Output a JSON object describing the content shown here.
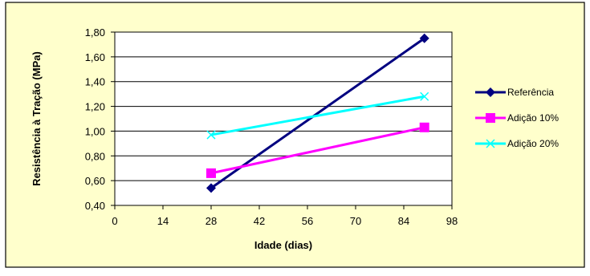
{
  "colors": {
    "chart_area_bg": "#FFFFCC",
    "plot_bg": "#FFFFFF",
    "border": "#000000",
    "grid": "#000000",
    "axis_text": "#000000"
  },
  "chart_data": {
    "type": "line",
    "xlabel": "Idade (dias)",
    "ylabel": "Resistência à Tração (MPa)",
    "xlim": [
      0,
      98
    ],
    "ylim": [
      0.4,
      1.8
    ],
    "xticks": [
      0,
      14,
      28,
      42,
      56,
      70,
      84,
      98
    ],
    "yticks": [
      0.4,
      0.6,
      0.8,
      1.0,
      1.2,
      1.4,
      1.6,
      1.8
    ],
    "xtick_labels": [
      "0",
      "14",
      "28",
      "42",
      "56",
      "70",
      "84",
      "98"
    ],
    "ytick_labels": [
      "0,40",
      "0,60",
      "0,80",
      "1,00",
      "1,20",
      "1,40",
      "1,60",
      "1,80"
    ],
    "grid": "horizontal",
    "legend_position": "right",
    "series": [
      {
        "name": "Referência",
        "color": "#000080",
        "marker": "diamond",
        "x": [
          28,
          90
        ],
        "y": [
          0.54,
          1.75
        ]
      },
      {
        "name": "Adição 10%",
        "color": "#FF00FF",
        "marker": "square",
        "x": [
          28,
          90
        ],
        "y": [
          0.66,
          1.03
        ]
      },
      {
        "name": "Adição 20%",
        "color": "#00FFFF",
        "marker": "x",
        "x": [
          28,
          90
        ],
        "y": [
          0.97,
          1.28
        ]
      }
    ]
  }
}
